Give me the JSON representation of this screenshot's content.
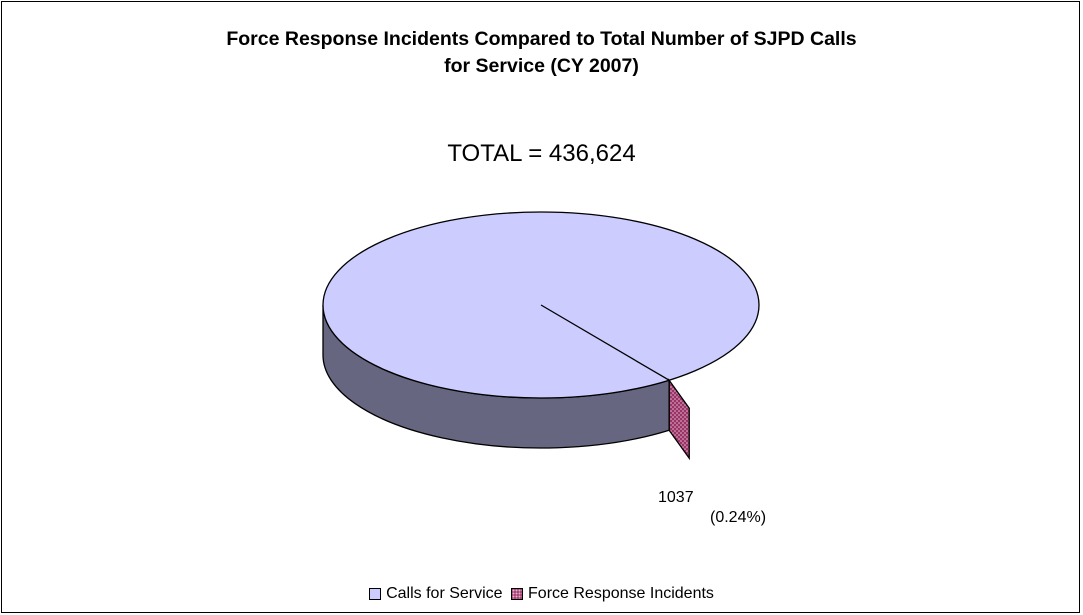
{
  "chart_data": {
    "type": "pie",
    "title_line1": "Force Response Incidents Compared to Total Number of SJPD Calls",
    "title_line2": "for Service  (CY 2007)",
    "subtitle": "TOTAL = 436,624",
    "total": 436624,
    "slices": [
      {
        "name": "Calls for Service",
        "value": 435587,
        "color": "#ccccff",
        "side_color": "#666680"
      },
      {
        "name": "Force Response Incidents",
        "value": 1037,
        "color": "#993366",
        "side_color": "#993366",
        "value_label": "1037",
        "percent_label": "(0.24%)"
      }
    ],
    "three_d": true,
    "exploded": "Force Response Incidents",
    "legend_position": "bottom"
  }
}
